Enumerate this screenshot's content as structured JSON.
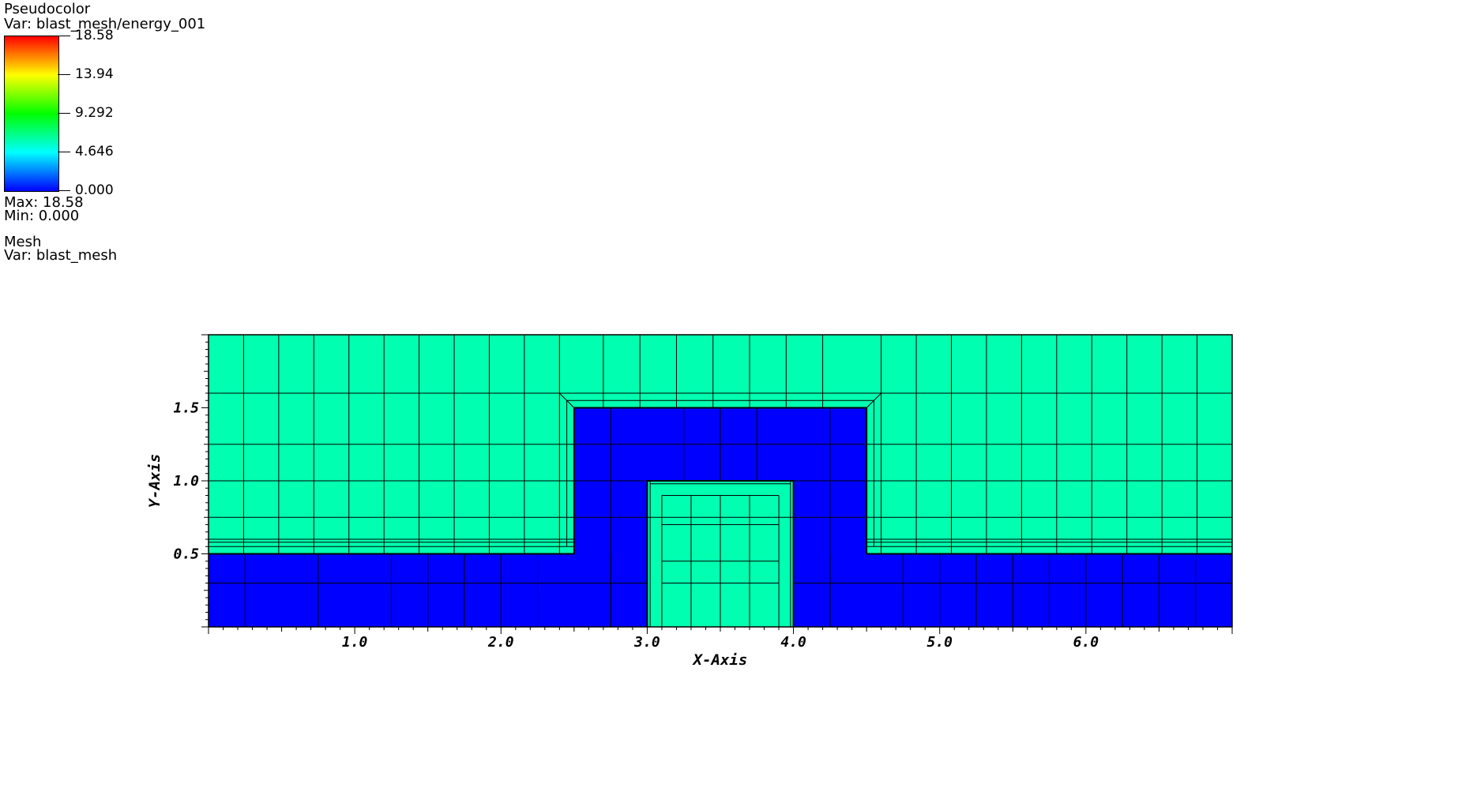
{
  "legend": {
    "pseudocolor_title": "Pseudocolor",
    "pseudocolor_var": "Var: blast_mesh/energy_001",
    "colorbar_ticks": [
      "18.58",
      "13.94",
      "9.292",
      "4.646",
      "0.000"
    ],
    "max_label": "Max:  18.58",
    "min_label": "Min:  0.000",
    "mesh_title": "Mesh",
    "mesh_var": "Var: blast_mesh",
    "colorbar_colors": [
      "#ff0000",
      "#ffff00",
      "#00ff00",
      "#00ffff",
      "#0000ff"
    ]
  },
  "chart_data": {
    "type": "heatmap",
    "xlabel": "X-Axis",
    "ylabel": "Y-Axis",
    "xlim": [
      0,
      7
    ],
    "ylim": [
      0,
      2
    ],
    "xticks": [
      "1.0",
      "2.0",
      "3.0",
      "4.0",
      "5.0",
      "6.0"
    ],
    "yticks": [
      "0.5",
      "1.0",
      "1.5"
    ],
    "value_range": [
      0,
      18.58
    ],
    "colors": {
      "low_region": "#0000ff",
      "high_region": "#00ffb0",
      "mesh_lines": "#000000"
    },
    "regions": [
      {
        "name": "low",
        "polygon": [
          [
            0,
            0
          ],
          [
            3,
            0
          ],
          [
            3,
            1
          ],
          [
            4,
            1
          ],
          [
            4,
            0
          ],
          [
            7,
            0
          ],
          [
            7,
            0.5
          ],
          [
            4.5,
            0.5
          ],
          [
            4.5,
            1.5
          ],
          [
            2.5,
            1.5
          ],
          [
            2.5,
            0.5
          ],
          [
            0,
            0.5
          ]
        ]
      },
      {
        "name": "high",
        "polygon": [
          [
            0,
            0.5
          ],
          [
            2.5,
            0.5
          ],
          [
            2.5,
            1.5
          ],
          [
            4.5,
            1.5
          ],
          [
            4.5,
            0.5
          ],
          [
            7,
            0.5
          ],
          [
            7,
            2
          ],
          [
            0,
            2
          ]
        ]
      },
      {
        "name": "high",
        "polygon": [
          [
            3,
            0
          ],
          [
            4,
            0
          ],
          [
            4,
            1
          ],
          [
            3,
            1
          ]
        ]
      }
    ]
  }
}
